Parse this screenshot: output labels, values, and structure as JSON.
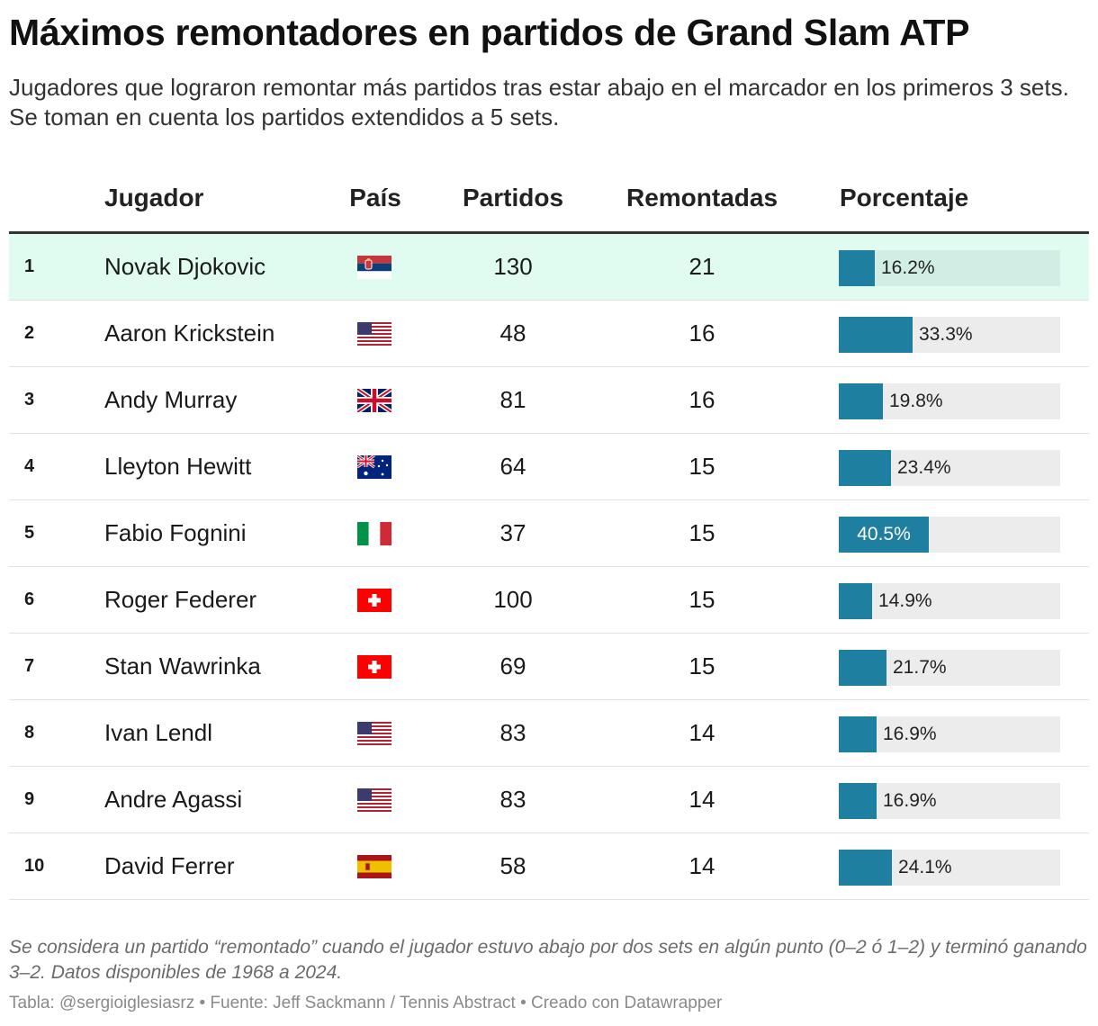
{
  "title": "Máximos remontadores en partidos de Grand Slam ATP",
  "subtitle": "Jugadores que lograron remontar más partidos tras estar abajo en el marcador en los primeros 3 sets. Se toman en cuenta los partidos extendidos a 5 sets.",
  "chart_data": {
    "type": "table",
    "columns": [
      "",
      "Jugador",
      "País",
      "Partidos",
      "Remontadas",
      "Porcentaje"
    ],
    "bar_color": "#1e7fa0",
    "highlight_color": "#e0fcf1",
    "rows": [
      {
        "rank": "1",
        "player": "Novak Djokovic",
        "flag": "serbia-flag",
        "matches": "130",
        "comebacks": "21",
        "pct": 16.2,
        "pct_label": "16.2%",
        "highlight": true
      },
      {
        "rank": "2",
        "player": "Aaron Krickstein",
        "flag": "usa-flag",
        "matches": "48",
        "comebacks": "16",
        "pct": 33.3,
        "pct_label": "33.3%"
      },
      {
        "rank": "3",
        "player": "Andy Murray",
        "flag": "uk-flag",
        "matches": "81",
        "comebacks": "16",
        "pct": 19.8,
        "pct_label": "19.8%"
      },
      {
        "rank": "4",
        "player": "Lleyton Hewitt",
        "flag": "australia-flag",
        "matches": "64",
        "comebacks": "15",
        "pct": 23.4,
        "pct_label": "23.4%"
      },
      {
        "rank": "5",
        "player": "Fabio Fognini",
        "flag": "italy-flag",
        "matches": "37",
        "comebacks": "15",
        "pct": 40.5,
        "pct_label": "40.5%"
      },
      {
        "rank": "6",
        "player": "Roger Federer",
        "flag": "switzerland-flag",
        "matches": "100",
        "comebacks": "15",
        "pct": 14.9,
        "pct_label": "14.9%"
      },
      {
        "rank": "7",
        "player": "Stan Wawrinka",
        "flag": "switzerland-flag",
        "matches": "69",
        "comebacks": "15",
        "pct": 21.7,
        "pct_label": "21.7%"
      },
      {
        "rank": "8",
        "player": "Ivan Lendl",
        "flag": "usa-flag",
        "matches": "83",
        "comebacks": "14",
        "pct": 16.9,
        "pct_label": "16.9%"
      },
      {
        "rank": "9",
        "player": "Andre Agassi",
        "flag": "usa-flag",
        "matches": "83",
        "comebacks": "14",
        "pct": 16.9,
        "pct_label": "16.9%"
      },
      {
        "rank": "10",
        "player": "David Ferrer",
        "flag": "spain-flag",
        "matches": "58",
        "comebacks": "14",
        "pct": 24.1,
        "pct_label": "24.1%"
      }
    ]
  },
  "footnote": "Se considera un partido “remontado” cuando el jugador estuvo abajo por dos sets en algún punto (0–2 ó 1–2) y terminó ganando 3–2. Datos disponibles de 1968 a 2024.",
  "credit": "Tabla: @sergioiglesiasrz • Fuente: Jeff Sackmann / Tennis Abstract • Creado con Datawrapper"
}
